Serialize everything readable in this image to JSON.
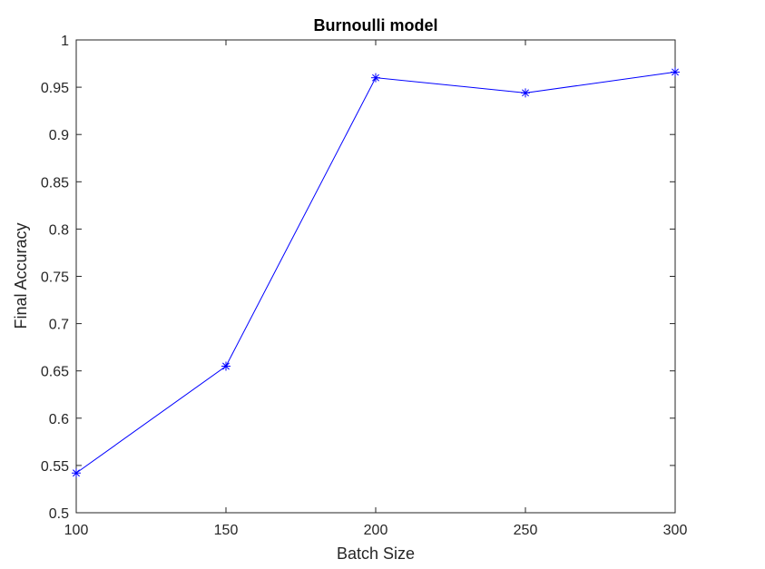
{
  "chart_data": {
    "type": "line",
    "title": "Burnoulli model",
    "xlabel": "Batch Size",
    "ylabel": "Final Accuracy",
    "xlim": [
      100,
      300
    ],
    "ylim": [
      0.5,
      1
    ],
    "x_ticks": [
      100,
      150,
      200,
      250,
      300
    ],
    "x_tick_labels": [
      "100",
      "150",
      "200",
      "250",
      "300"
    ],
    "y_ticks": [
      0.5,
      0.55,
      0.6,
      0.65,
      0.7,
      0.75,
      0.8,
      0.85,
      0.9,
      0.95,
      1
    ],
    "y_tick_labels": [
      "0.5",
      "0.55",
      "0.6",
      "0.65",
      "0.7",
      "0.75",
      "0.8",
      "0.85",
      "0.9",
      "0.95",
      "1"
    ],
    "grid": false,
    "series": [
      {
        "x": [
          100,
          150,
          200,
          250,
          300
        ],
        "y": [
          0.542,
          0.655,
          0.96,
          0.944,
          0.966
        ],
        "color": "#0000ff",
        "marker": "asterisk"
      }
    ]
  }
}
